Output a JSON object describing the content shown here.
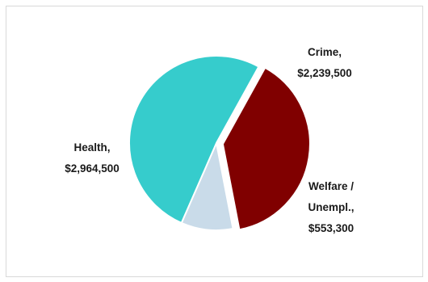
{
  "chart_data": {
    "type": "pie",
    "title": "",
    "legend": "none",
    "slices": [
      {
        "label_line1": "Crime,",
        "label_line2": "$2,239,500",
        "label_line3": "",
        "value": 2239500,
        "color": "#800000",
        "exploded": true
      },
      {
        "label_line1": "Welfare /",
        "label_line2": "Unempl.,",
        "label_line3": "$553,300",
        "value": 553300,
        "color": "#c9dbe9",
        "exploded": false
      },
      {
        "label_line1": "Health,",
        "label_line2": "$2,964,500",
        "label_line3": "",
        "value": 2964500,
        "color": "#36cccc",
        "exploded": false
      }
    ]
  }
}
